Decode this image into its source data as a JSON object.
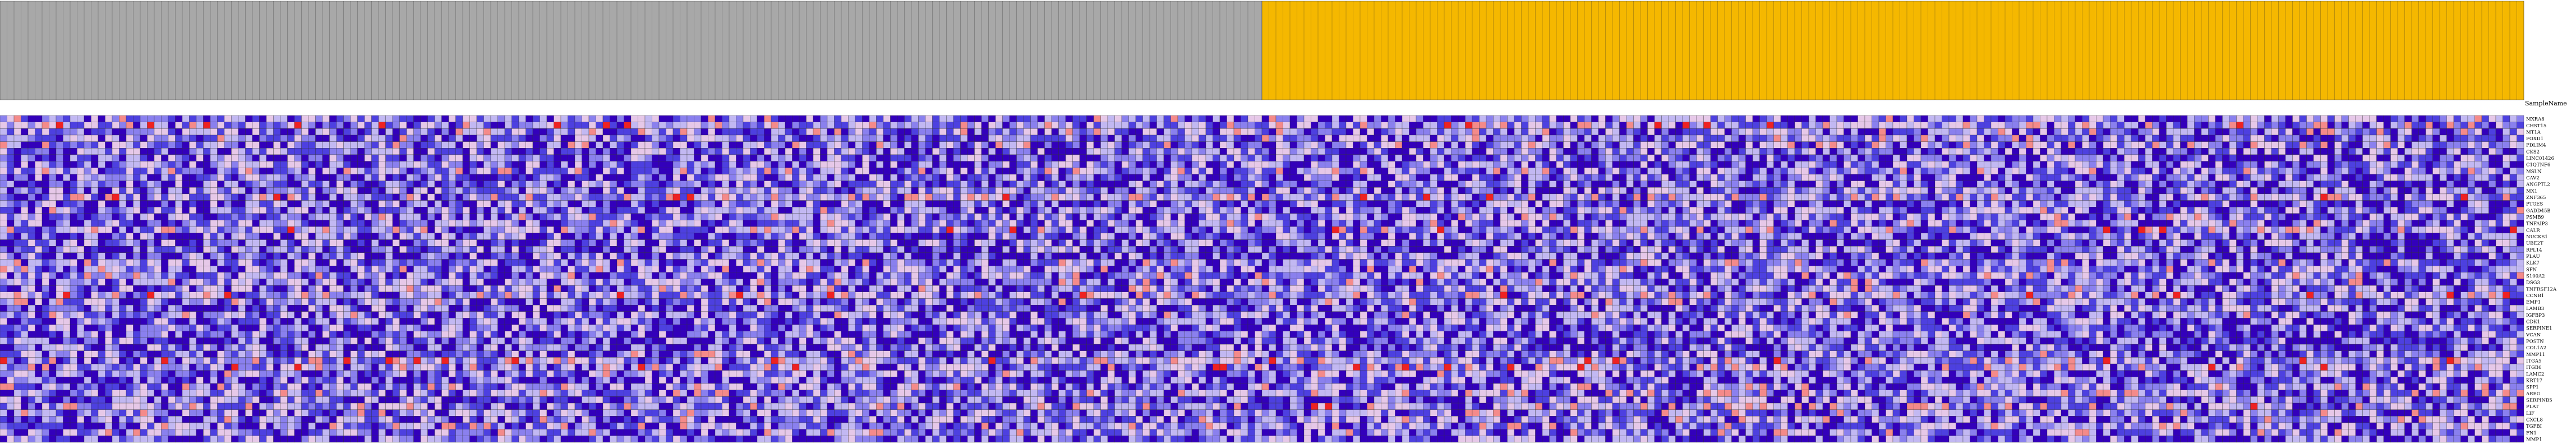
{
  "chart_data": {
    "type": "heatmap",
    "title": "",
    "sample_axis_label": "SampleName",
    "n_samples": 360,
    "groups": [
      {
        "start": 0,
        "count": 180,
        "color": "#a8a8a8"
      },
      {
        "start": 180,
        "count": 180,
        "color": "#f5b800"
      }
    ],
    "genes": [
      "MXRA8",
      "CHST15",
      "MT1A",
      "FOXD1",
      "PDLIM4",
      "CKS2",
      "LINC01426",
      "C1QTNF6",
      "MSLN",
      "CAV2",
      "ANGPTL2",
      "MX1",
      "ZNF365",
      "PTGES",
      "GADD45B",
      "PSMB9",
      "TNFAIP3",
      "CALR",
      "NUCKS1",
      "UBE2T",
      "RPL14",
      "PLAU",
      "KLK7",
      "SFN",
      "S100A2",
      "DSG3",
      "TNFRSF12A",
      "CCNB1",
      "EMP1",
      "LAMB3",
      "IGFBP3",
      "CDK1",
      "SERPINE1",
      "VCAN",
      "POSTN",
      "COL1A2",
      "MMP11",
      "ITGA5",
      "ITGB6",
      "LAMC2",
      "KRT17",
      "SPP1",
      "AREG",
      "SERPINB5",
      "PLAT",
      "LIF",
      "CXCL8",
      "TGFBI",
      "FN1",
      "MMP1"
    ],
    "cell_colors": [
      "#3300bb",
      "#4d40e0",
      "#8a80ee",
      "#c2b8f2",
      "#e6c8e8",
      "#f48a8a",
      "#ee2222"
    ],
    "gridlines": true,
    "legend": "none"
  }
}
